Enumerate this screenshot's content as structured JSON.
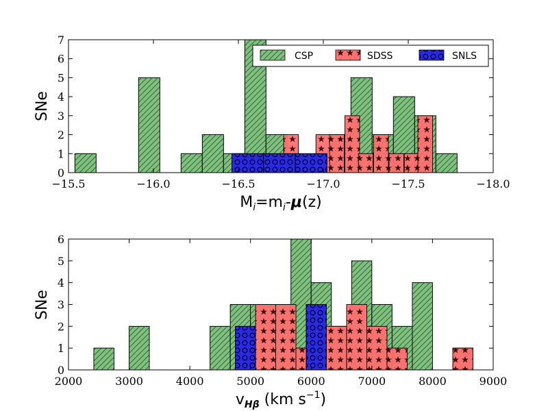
{
  "colors": {
    "CSP": "#7fbf7f",
    "SDSS": "#ff7070",
    "SNLS": "#2a2ae0",
    "SDSS_over": "#d9534f"
  },
  "chart_data": [
    {
      "type": "bar",
      "title": "",
      "xlabel": "M_i=m_i-μ(z)",
      "xlabel_parts": {
        "a": "M",
        "b": "i",
        "c": "=m",
        "d": "i",
        "e": "-",
        "f": "μ",
        "g": "(z)"
      },
      "ylabel": "SNe",
      "xlim": [
        -15.5,
        -18.0
      ],
      "ylim": [
        0,
        7
      ],
      "xticks": [
        -15.5,
        -16.0,
        -16.5,
        -17.0,
        -17.5,
        -18.0
      ],
      "xtick_labels": [
        "−15.5",
        "−16.0",
        "−16.5",
        "−17.0",
        "−17.5",
        "−18.0"
      ],
      "yticks": [
        0,
        1,
        2,
        3,
        4,
        5,
        6,
        7
      ],
      "ytick_labels": [
        "0",
        "1",
        "2",
        "3",
        "4",
        "5",
        "6",
        "7"
      ],
      "legend": {
        "position": "top-right",
        "entries": [
          "CSP",
          "SDSS",
          "SNLS"
        ]
      },
      "series": [
        {
          "name": "CSP",
          "bin_width": 0.125,
          "bins": [
            [
              -15.6,
              1
            ],
            [
              -15.975,
              5
            ],
            [
              -16.225,
              1
            ],
            [
              -16.35,
              2
            ],
            [
              -16.475,
              1
            ],
            [
              -16.6,
              7
            ],
            [
              -16.725,
              2
            ],
            [
              -17.1,
              2
            ],
            [
              -17.225,
              5
            ],
            [
              -17.35,
              2
            ],
            [
              -17.475,
              4
            ],
            [
              -17.6,
              3
            ],
            [
              -17.725,
              1
            ]
          ]
        },
        {
          "name": "SDSS",
          "bin_width": 0.0866,
          "bins": [
            [
              -16.81,
              2
            ],
            [
              -17.0,
              2
            ],
            [
              -17.08,
              2
            ],
            [
              -17.17,
              3
            ],
            [
              -17.25,
              1
            ],
            [
              -17.34,
              2
            ],
            [
              -17.43,
              1
            ],
            [
              -17.52,
              1
            ],
            [
              -17.6,
              3
            ]
          ]
        },
        {
          "name": "SNLS",
          "bin_width": 0.1866,
          "bins": [
            [
              -16.555,
              1
            ],
            [
              -16.7416,
              1
            ],
            [
              -16.9283,
              1
            ]
          ]
        }
      ]
    },
    {
      "type": "bar",
      "title": "",
      "xlabel": "v_Hβ (km s^-1)",
      "xlabel_parts": {
        "a": "v",
        "b": "Hβ",
        "c": " (km s",
        "d": "−1",
        "e": ")"
      },
      "ylabel": "SNe",
      "xlim": [
        2000,
        9000
      ],
      "ylim": [
        0,
        6
      ],
      "xticks": [
        2000,
        3000,
        4000,
        5000,
        6000,
        7000,
        8000,
        9000
      ],
      "xtick_labels": [
        "2000",
        "3000",
        "4000",
        "5000",
        "6000",
        "7000",
        "8000",
        "9000"
      ],
      "yticks": [
        0,
        1,
        2,
        3,
        4,
        5,
        6
      ],
      "ytick_labels": [
        "0",
        "1",
        "2",
        "3",
        "4",
        "5",
        "6"
      ],
      "series": [
        {
          "name": "CSP",
          "bin_width": 333,
          "bins": [
            [
              2583,
              1
            ],
            [
              3166,
              2
            ],
            [
              4500,
              2
            ],
            [
              4833,
              3
            ],
            [
              5166,
              3
            ],
            [
              5500,
              3
            ],
            [
              5833,
              6
            ],
            [
              6166,
              4
            ],
            [
              6500,
              2
            ],
            [
              6833,
              5
            ],
            [
              7166,
              3
            ],
            [
              7500,
              2
            ],
            [
              7833,
              4
            ],
            [
              8500,
              1
            ]
          ]
        },
        {
          "name": "SDSS",
          "bin_width": 333,
          "bins": [
            [
              5250,
              3
            ],
            [
              5583,
              3
            ],
            [
              5916,
              1
            ],
            [
              6416,
              2
            ],
            [
              6750,
              3
            ],
            [
              7083,
              2
            ],
            [
              7416,
              1
            ],
            [
              8500,
              1
            ]
          ]
        },
        {
          "name": "SNLS",
          "bin_width": 333,
          "bins": [
            [
              4916,
              2
            ],
            [
              6083,
              3
            ]
          ]
        }
      ]
    }
  ]
}
